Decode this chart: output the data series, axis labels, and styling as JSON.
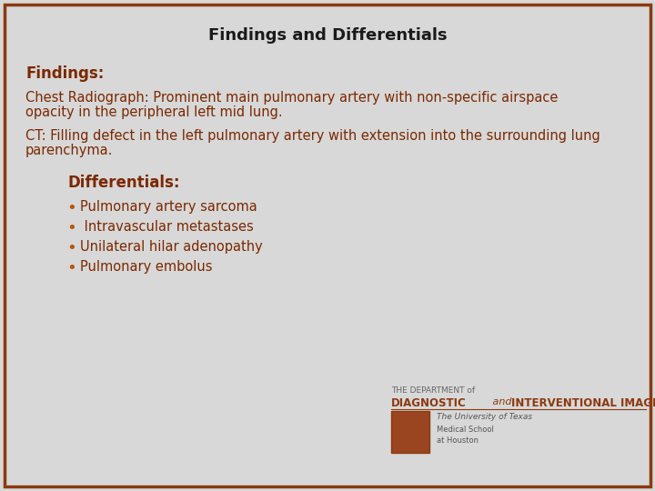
{
  "title": "Findings and Differentials",
  "title_fontsize": 13,
  "title_color": "#1a1a1a",
  "background_color": "#d8d8d8",
  "border_color": "#8B3A10",
  "findings_label": "Findings:",
  "findings_label_color": "#7B2800",
  "findings_label_fontsize": 12,
  "chest_text_line1": "Chest Radiograph: Prominent main pulmonary artery with non-specific airspace",
  "chest_text_line2": "opacity in the peripheral left mid lung.",
  "ct_text_line1": "CT: Filling defect in the left pulmonary artery with extension into the surrounding lung",
  "ct_text_line2": "parenchyma.",
  "body_text_color": "#7B2800",
  "body_fontsize": 10.5,
  "differentials_label": "Differentials:",
  "differentials_label_color": "#7B2800",
  "differentials_label_fontsize": 12,
  "bullet_color": "#B8560A",
  "bullet_items": [
    "Pulmonary artery sarcoma",
    " Intravascular metastases",
    "Unilateral hilar adenopathy",
    "Pulmonary embolus"
  ],
  "bullet_fontsize": 10.5,
  "logo_dept": "THE DEPARTMENT of",
  "logo_diag": "DIAGNOSTIC",
  "logo_and": " and ",
  "logo_interv": "INTERVENTIONAL IMAGING",
  "logo_univ": "The University of Texas",
  "logo_med": "Medical School",
  "logo_houston": "at Houston"
}
